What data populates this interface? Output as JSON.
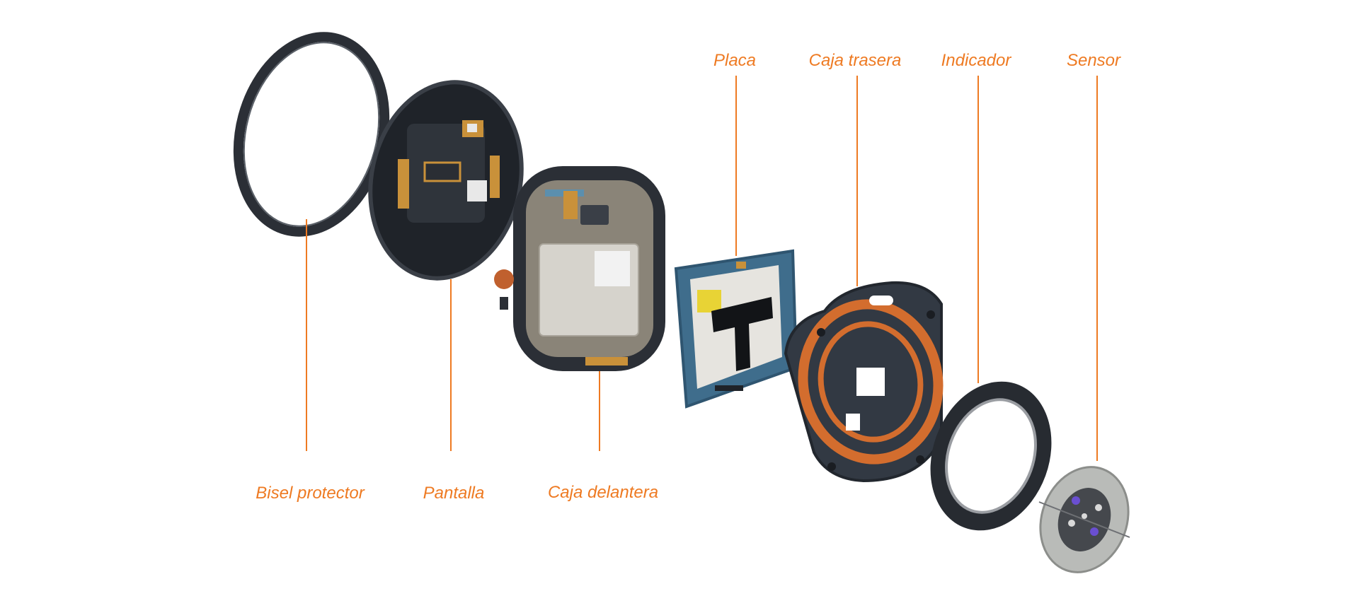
{
  "colors": {
    "accent": "#ee7a22",
    "background": "#ffffff",
    "dark_component": "#2b2f36",
    "pcb_blue": "#3f6d8c",
    "copper": "#d36d2e",
    "battery": "#d6d3cc"
  },
  "labels": {
    "bisel": "Bisel protector",
    "pantalla": "Pantalla",
    "caja_delantera": "Caja delantera",
    "placa": "Placa",
    "caja_trasera": "Caja trasera",
    "indicador": "Indicador",
    "sensor": "Sensor"
  }
}
